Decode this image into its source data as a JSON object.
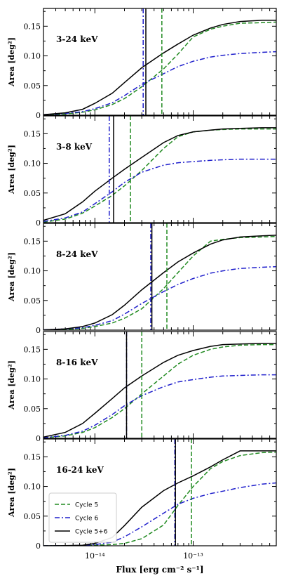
{
  "chart_data": {
    "type": "line",
    "x_scale": "log",
    "y_scale": "linear",
    "xlim": [
      3e-15,
      7e-13
    ],
    "ylim": [
      0,
      0.18
    ],
    "yticks": [
      0,
      0.05,
      0.1,
      0.15
    ],
    "ytick_labels": [
      "0",
      "0.05",
      "0.10",
      "0.15"
    ],
    "xticks": [
      1e-14,
      1e-13
    ],
    "xtick_labels": [
      "10⁻¹⁴",
      "10⁻¹³"
    ],
    "ylabel": "Area [deg²]",
    "xlabel": "Flux [erg cm⁻² s⁻¹]",
    "legend": {
      "placement": "lower-left of bottom panel",
      "entries": [
        {
          "name": "Cycle 5",
          "color": "#228b22",
          "dash": "dashed"
        },
        {
          "name": "Cycle 6",
          "color": "#1f1fcc",
          "dash": "dashdot"
        },
        {
          "name": "Cycle 5+6",
          "color": "#000000",
          "dash": "solid"
        }
      ]
    },
    "panels": [
      {
        "label": "3-24 keV",
        "vlines": {
          "Cycle 5": 4.8e-14,
          "Cycle 6": 3.1e-14,
          "Cycle 5+6": 3.3e-14
        },
        "series": [
          {
            "name": "Cycle 5",
            "x": [
              3e-15,
              5e-15,
              7.5e-15,
              1e-14,
              1.5e-14,
              2e-14,
              3e-14,
              5e-14,
              7e-14,
              1e-13,
              1.5e-13,
              2e-13,
              3e-13,
              5e-13,
              7e-13
            ],
            "y": [
              0.0005,
              0.002,
              0.005,
              0.009,
              0.018,
              0.028,
              0.048,
              0.078,
              0.103,
              0.132,
              0.145,
              0.15,
              0.155,
              0.156,
              0.157
            ]
          },
          {
            "name": "Cycle 6",
            "x": [
              3e-15,
              5e-15,
              7.5e-15,
              1e-14,
              1.5e-14,
              2e-14,
              3e-14,
              5e-14,
              7e-14,
              1e-13,
              1.5e-13,
              2e-13,
              3e-13,
              5e-13,
              7e-13
            ],
            "y": [
              0.001,
              0.003,
              0.006,
              0.011,
              0.021,
              0.033,
              0.052,
              0.07,
              0.082,
              0.091,
              0.098,
              0.101,
              0.104,
              0.106,
              0.107
            ]
          },
          {
            "name": "Cycle 5+6",
            "x": [
              3e-15,
              5e-15,
              7.5e-15,
              1e-14,
              1.5e-14,
              2e-14,
              3e-14,
              5e-14,
              7e-14,
              1e-13,
              1.5e-13,
              2e-13,
              3e-13,
              5e-13,
              7e-13
            ],
            "y": [
              0.001,
              0.004,
              0.01,
              0.02,
              0.037,
              0.055,
              0.08,
              0.105,
              0.12,
              0.135,
              0.147,
              0.153,
              0.158,
              0.16,
              0.16
            ]
          }
        ]
      },
      {
        "label": "3-8 keV",
        "vlines": {
          "Cycle 5": 2.3e-14,
          "Cycle 6": 1.4e-14,
          "Cycle 5+6": 1.55e-14
        },
        "series": [
          {
            "name": "Cycle 5",
            "x": [
              3e-15,
              5e-15,
              7.5e-15,
              1e-14,
              1.5e-14,
              2e-14,
              3e-14,
              5e-14,
              7e-14,
              1e-13,
              1.5e-13,
              2e-13,
              3e-13,
              5e-13,
              7e-13
            ],
            "y": [
              0.001,
              0.006,
              0.016,
              0.028,
              0.046,
              0.062,
              0.088,
              0.125,
              0.145,
              0.153,
              0.156,
              0.157,
              0.158,
              0.158,
              0.158
            ]
          },
          {
            "name": "Cycle 6",
            "x": [
              3e-15,
              5e-15,
              7.5e-15,
              1e-14,
              1.5e-14,
              2e-14,
              3e-14,
              5e-14,
              7e-14,
              1e-13,
              1.5e-13,
              2e-13,
              3e-13,
              5e-13,
              7e-13
            ],
            "y": [
              0.002,
              0.008,
              0.018,
              0.032,
              0.052,
              0.068,
              0.085,
              0.097,
              0.101,
              0.103,
              0.105,
              0.106,
              0.107,
              0.107,
              0.107
            ]
          },
          {
            "name": "Cycle 5+6",
            "x": [
              3e-15,
              5e-15,
              7.5e-15,
              1e-14,
              1.5e-14,
              2e-14,
              3e-14,
              5e-14,
              7e-14,
              1e-13,
              1.5e-13,
              2e-13,
              3e-13,
              5e-13,
              7e-13
            ],
            "y": [
              0.004,
              0.015,
              0.035,
              0.053,
              0.075,
              0.09,
              0.11,
              0.135,
              0.147,
              0.153,
              0.156,
              0.158,
              0.159,
              0.16,
              0.16
            ]
          }
        ]
      },
      {
        "label": "8-24 keV",
        "vlines": {
          "Cycle 5": 5.4e-14,
          "Cycle 6": 3.7e-14,
          "Cycle 5+6": 3.8e-14
        },
        "series": [
          {
            "name": "Cycle 5",
            "x": [
              3e-15,
              5e-15,
              7.5e-15,
              1e-14,
              1.5e-14,
              2e-14,
              3e-14,
              5e-14,
              7e-14,
              1e-13,
              1.5e-13,
              2e-13,
              3e-13,
              5e-13,
              7e-13
            ],
            "y": [
              0.0003,
              0.001,
              0.003,
              0.006,
              0.012,
              0.02,
              0.036,
              0.07,
              0.097,
              0.125,
              0.15,
              0.153,
              0.156,
              0.157,
              0.158
            ]
          },
          {
            "name": "Cycle 6",
            "x": [
              3e-15,
              5e-15,
              7.5e-15,
              1e-14,
              1.5e-14,
              2e-14,
              3e-14,
              5e-14,
              7e-14,
              1e-13,
              1.5e-13,
              2e-13,
              3e-13,
              5e-13,
              7e-13
            ],
            "y": [
              0.0005,
              0.002,
              0.004,
              0.008,
              0.016,
              0.027,
              0.045,
              0.065,
              0.077,
              0.087,
              0.096,
              0.1,
              0.104,
              0.106,
              0.107
            ]
          },
          {
            "name": "Cycle 5+6",
            "x": [
              3e-15,
              5e-15,
              7.5e-15,
              1e-14,
              1.5e-14,
              2e-14,
              3e-14,
              5e-14,
              7e-14,
              1e-13,
              1.5e-13,
              2e-13,
              3e-13,
              5e-13,
              7e-13
            ],
            "y": [
              0.0005,
              0.002,
              0.006,
              0.012,
              0.026,
              0.042,
              0.068,
              0.097,
              0.115,
              0.13,
              0.145,
              0.152,
              0.157,
              0.159,
              0.16
            ]
          }
        ]
      },
      {
        "label": "8-16 keV",
        "vlines": {
          "Cycle 5": 3e-14,
          "Cycle 6": 2.1e-14,
          "Cycle 5+6": 2.1e-14
        },
        "series": [
          {
            "name": "Cycle 5",
            "x": [
              3e-15,
              5e-15,
              7.5e-15,
              1e-14,
              1.5e-14,
              2e-14,
              3e-14,
              5e-14,
              7e-14,
              1e-13,
              1.5e-13,
              2e-13,
              3e-13,
              5e-13,
              7e-13
            ],
            "y": [
              0.001,
              0.004,
              0.01,
              0.018,
              0.035,
              0.05,
              0.075,
              0.105,
              0.125,
              0.14,
              0.15,
              0.154,
              0.157,
              0.158,
              0.158
            ]
          },
          {
            "name": "Cycle 6",
            "x": [
              3e-15,
              5e-15,
              7.5e-15,
              1e-14,
              1.5e-14,
              2e-14,
              3e-14,
              5e-14,
              7e-14,
              1e-13,
              1.5e-13,
              2e-13,
              3e-13,
              5e-13,
              7e-13
            ],
            "y": [
              0.001,
              0.005,
              0.012,
              0.022,
              0.04,
              0.055,
              0.072,
              0.087,
              0.095,
              0.099,
              0.103,
              0.105,
              0.106,
              0.107,
              0.107
            ]
          },
          {
            "name": "Cycle 5+6",
            "x": [
              3e-15,
              5e-15,
              7.5e-15,
              1e-14,
              1.5e-14,
              2e-14,
              3e-14,
              5e-14,
              7e-14,
              1e-13,
              1.5e-13,
              2e-13,
              3e-13,
              5e-13,
              7e-13
            ],
            "y": [
              0.002,
              0.01,
              0.025,
              0.042,
              0.067,
              0.085,
              0.105,
              0.128,
              0.14,
              0.148,
              0.155,
              0.158,
              0.159,
              0.16,
              0.16
            ]
          }
        ]
      },
      {
        "label": "16-24 keV",
        "vlines": {
          "Cycle 5": 9.6e-14,
          "Cycle 6": 6.5e-14,
          "Cycle 5+6": 6.6e-14
        },
        "series": [
          {
            "name": "Cycle 5",
            "x": [
              3e-15,
              5e-15,
              7.5e-15,
              1e-14,
              1.5e-14,
              2e-14,
              3e-14,
              5e-14,
              7e-14,
              1e-13,
              1.5e-13,
              2e-13,
              3e-13,
              5e-13,
              7e-13
            ],
            "y": [
              0,
              0,
              0.0003,
              0.001,
              0.002,
              0.004,
              0.012,
              0.035,
              0.068,
              0.1,
              0.13,
              0.142,
              0.152,
              0.157,
              0.158
            ]
          },
          {
            "name": "Cycle 6",
            "x": [
              3e-15,
              5e-15,
              7.5e-15,
              1e-14,
              1.5e-14,
              2e-14,
              3e-14,
              5e-14,
              7e-14,
              1e-13,
              1.5e-13,
              2e-13,
              3e-13,
              5e-13,
              7e-13
            ],
            "y": [
              0,
              0.0002,
              0.0005,
              0.002,
              0.006,
              0.015,
              0.032,
              0.055,
              0.07,
              0.08,
              0.088,
              0.092,
              0.098,
              0.104,
              0.106
            ]
          },
          {
            "name": "Cycle 5+6",
            "x": [
              3e-15,
              5e-15,
              7.5e-15,
              1e-14,
              1.5e-14,
              2e-14,
              3e-14,
              5e-14,
              7e-14,
              1e-13,
              1.5e-13,
              2e-13,
              3e-13,
              5e-13,
              7e-13
            ],
            "y": [
              0,
              0.0003,
              0.001,
              0.004,
              0.014,
              0.034,
              0.065,
              0.093,
              0.106,
              0.118,
              0.133,
              0.145,
              0.16,
              0.16,
              0.16
            ]
          }
        ]
      }
    ]
  }
}
